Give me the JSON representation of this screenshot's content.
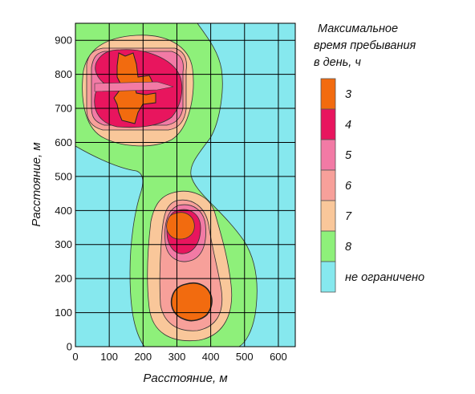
{
  "chart_data": {
    "type": "heatmap",
    "xlabel": "Расстояние, м",
    "ylabel": "Расстояние, м",
    "xlim": [
      0,
      650
    ],
    "ylim": [
      0,
      950
    ],
    "x_ticks": [
      0,
      100,
      200,
      300,
      400,
      500,
      600
    ],
    "y_ticks": [
      0,
      100,
      200,
      300,
      400,
      500,
      600,
      700,
      800,
      900
    ],
    "grid": true,
    "legend_position": "right",
    "legend_title": [
      "Максимальное",
      "время пребывания",
      "в день, ч"
    ],
    "legend": [
      {
        "label": "3",
        "color": "#f26b0f"
      },
      {
        "label": "4",
        "color": "#e8155e"
      },
      {
        "label": "5",
        "color": "#f27aa5"
      },
      {
        "label": "6",
        "color": "#f7a09a"
      },
      {
        "label": "7",
        "color": "#f9c79a"
      },
      {
        "label": "8",
        "color": "#8ef07a"
      },
      {
        "label": "не ограничено",
        "color": "#86e8ee"
      }
    ],
    "zones": [
      {
        "level": "8",
        "shape": "green-region",
        "x_range": [
          0,
          500
        ],
        "y_range": [
          0,
          950
        ]
      },
      {
        "level": "7",
        "center": [
          185,
          785
        ],
        "radius_x": 120,
        "radius_y": 155
      },
      {
        "level": "6",
        "center": [
          185,
          790
        ],
        "radius_x": 90,
        "radius_y": 105
      },
      {
        "level": "5",
        "center": [
          185,
          790
        ],
        "radius_x": 80,
        "radius_y": 95
      },
      {
        "level": "4",
        "center": [
          180,
          790
        ],
        "radius_x": 70,
        "radius_y": 80
      },
      {
        "level": "3",
        "center": [
          160,
          790
        ],
        "radius_x": 30,
        "radius_y": 80
      },
      {
        "level": "7",
        "center": [
          320,
          280
        ],
        "radius_x": 105,
        "radius_y": 195
      },
      {
        "level": "6",
        "center": [
          320,
          265
        ],
        "radius_x": 75,
        "radius_y": 165
      },
      {
        "level": "5",
        "center": [
          310,
          335
        ],
        "radius_x": 55,
        "radius_y": 70
      },
      {
        "level": "4",
        "center": [
          310,
          340
        ],
        "radius_x": 40,
        "radius_y": 45
      },
      {
        "level": "3",
        "center": [
          310,
          355
        ],
        "radius_x": 25,
        "radius_y": 25
      },
      {
        "level": "3",
        "center": [
          340,
          125
        ],
        "radius_x": 35,
        "radius_y": 45
      }
    ]
  }
}
